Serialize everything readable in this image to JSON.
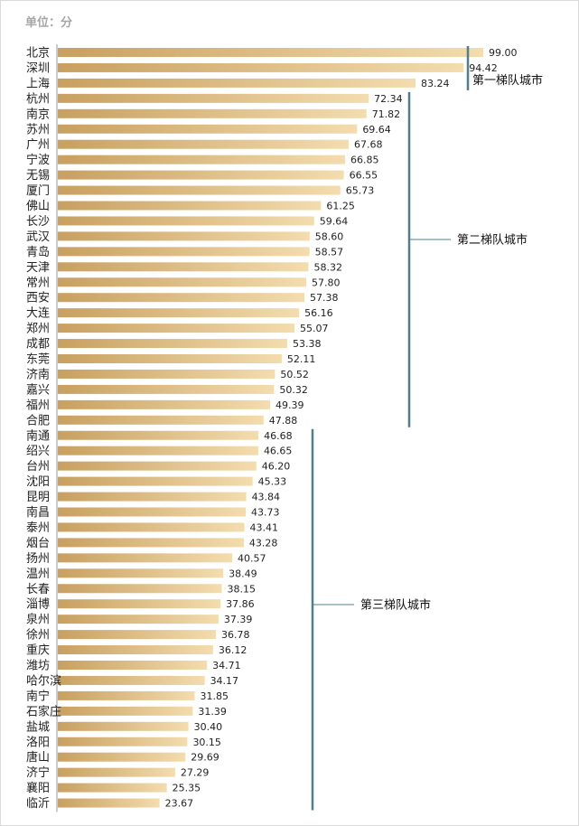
{
  "unit_label": "单位：分",
  "colors": {
    "bar_dark": "#c8a060",
    "bar_light": "#f3dcae",
    "bracket": "#4f7f8c",
    "axis": "#999999"
  },
  "chart_data": {
    "type": "bar",
    "orientation": "horizontal",
    "categories": [
      "北京",
      "深圳",
      "上海",
      "杭州",
      "南京",
      "苏州",
      "广州",
      "宁波",
      "无锡",
      "厦门",
      "佛山",
      "长沙",
      "武汉",
      "青岛",
      "天津",
      "常州",
      "西安",
      "大连",
      "郑州",
      "成都",
      "东莞",
      "济南",
      "嘉兴",
      "福州",
      "合肥",
      "南通",
      "绍兴",
      "台州",
      "沈阳",
      "昆明",
      "南昌",
      "泰州",
      "烟台",
      "扬州",
      "温州",
      "长春",
      "淄博",
      "泉州",
      "徐州",
      "重庆",
      "潍坊",
      "哈尔滨",
      "南宁",
      "石家庄",
      "盐城",
      "洛阳",
      "唐山",
      "济宁",
      "襄阳",
      "临沂"
    ],
    "values": [
      99.0,
      94.42,
      83.24,
      72.34,
      71.82,
      69.64,
      67.68,
      66.85,
      66.55,
      65.73,
      61.25,
      59.64,
      58.6,
      58.57,
      58.32,
      57.8,
      57.38,
      56.16,
      55.07,
      53.38,
      52.11,
      50.52,
      50.32,
      49.39,
      47.88,
      46.68,
      46.65,
      46.2,
      45.33,
      43.84,
      43.73,
      43.41,
      43.28,
      40.57,
      38.49,
      38.15,
      37.86,
      37.39,
      36.78,
      36.12,
      34.71,
      34.17,
      31.85,
      31.39,
      30.4,
      30.15,
      29.69,
      27.29,
      25.35,
      23.67
    ],
    "value_labels": [
      "99.00",
      "94.42",
      "83.24",
      "72.34",
      "71.82",
      "69.64",
      "67.68",
      "66.85",
      "66.55",
      "65.73",
      "61.25",
      "59.64",
      "58.60",
      "58.57",
      "58.32",
      "57.80",
      "57.38",
      "56.16",
      "55.07",
      "53.38",
      "52.11",
      "50.52",
      "50.32",
      "49.39",
      "47.88",
      "46.68",
      "46.65",
      "46.20",
      "45.33",
      "43.84",
      "43.73",
      "43.41",
      "43.28",
      "40.57",
      "38.49",
      "38.15",
      "37.86",
      "37.39",
      "36.78",
      "36.12",
      "34.71",
      "34.17",
      "31.85",
      "31.39",
      "30.40",
      "30.15",
      "29.69",
      "27.29",
      "25.35",
      "23.67"
    ],
    "xlim": [
      0,
      100
    ],
    "grid": false,
    "annotations": [
      {
        "label": "第一梯队城市",
        "from": 0,
        "to": 2
      },
      {
        "label": "第二梯队城市",
        "from": 3,
        "to": 24
      },
      {
        "label": "第三梯队城市",
        "from": 25,
        "to": 49
      }
    ]
  }
}
